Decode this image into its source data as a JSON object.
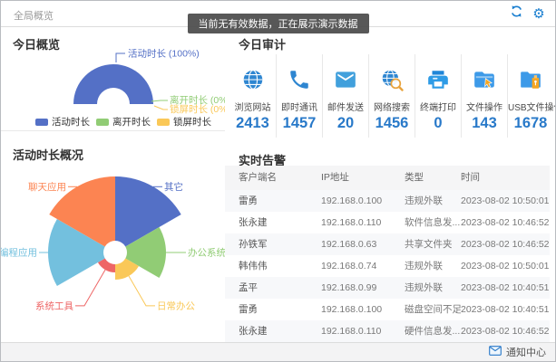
{
  "window": {
    "title": "全局概览"
  },
  "header": {
    "tooltip": "当前无有效数据，正在展示演示数据"
  },
  "colors": {
    "accent_blue": "#2879c9",
    "icon_blue": "#1b7fd0",
    "series_blue": "#5470c6",
    "series_green": "#91cc75",
    "series_yellow": "#fac858",
    "series_red": "#ee6666",
    "series_light_blue": "#73c0de",
    "series_orange": "#fc8452"
  },
  "overview": {
    "title": "今日概览",
    "legend": [
      {
        "label": "活动时长",
        "color": "#5470c6"
      },
      {
        "label": "离开时长",
        "color": "#91cc75"
      },
      {
        "label": "锁屏时长",
        "color": "#fac858"
      }
    ]
  },
  "audit": {
    "title": "今日审计",
    "stats": [
      {
        "icon": "browse-website-icon",
        "label": "浏览网站",
        "value": "2413"
      },
      {
        "icon": "instant-message-icon",
        "label": "即时通讯",
        "value": "1457"
      },
      {
        "icon": "email-send-icon",
        "label": "邮件发送",
        "value": "20"
      },
      {
        "icon": "web-search-icon",
        "label": "网络搜索",
        "value": "1456"
      },
      {
        "icon": "terminal-print-icon",
        "label": "终端打印",
        "value": "0"
      },
      {
        "icon": "file-operation-icon",
        "label": "文件操作",
        "value": "143"
      },
      {
        "icon": "usb-file-operation-icon",
        "label": "USB文件操作",
        "value": "1678"
      }
    ]
  },
  "activity": {
    "title": "活动时长概况"
  },
  "alerts": {
    "title": "实时告警",
    "columns": [
      "客户端名",
      "IP地址",
      "类型",
      "时间"
    ],
    "rows": [
      [
        "雷勇",
        "192.168.0.100",
        "违规外联",
        "2023-08-02 10:50:01"
      ],
      [
        "张永建",
        "192.168.0.110",
        "软件信息发...",
        "2023-08-02 10:46:52"
      ],
      [
        "孙铁军",
        "192.168.0.63",
        "共享文件夹",
        "2023-08-02 10:46:52"
      ],
      [
        "韩伟伟",
        "192.168.0.74",
        "违规外联",
        "2023-08-02 10:50:01"
      ],
      [
        "孟平",
        "192.168.0.99",
        "违规外联",
        "2023-08-02 10:40:51"
      ],
      [
        "雷勇",
        "192.168.0.100",
        "磁盘空间不足",
        "2023-08-02 10:40:51"
      ],
      [
        "张永建",
        "192.168.0.110",
        "硬件信息发...",
        "2023-08-02 10:46:52"
      ]
    ]
  },
  "footer": {
    "notification_label": "通知中心"
  },
  "chart_data": [
    {
      "id": "today-overview-half-donut",
      "type": "pie",
      "variant": "half-donut",
      "title": "今日概览",
      "legend_position": "bottom",
      "series": [
        {
          "name": "活动时长",
          "value_pct": 100,
          "color": "#5470c6",
          "label": "活动时长 (100%)"
        },
        {
          "name": "离开时长",
          "value_pct": 0,
          "color": "#91cc75",
          "label": "离开时长 (0%)"
        },
        {
          "name": "锁屏时长",
          "value_pct": 0,
          "color": "#fac858",
          "label": "锁屏时长 (0%)"
        }
      ]
    },
    {
      "id": "activity-duration-rose",
      "type": "pie",
      "variant": "nightingale-rose",
      "title": "活动时长概况",
      "start_angle_deg": 0,
      "sector_angle_deg": 60,
      "inner_radius_px": 13,
      "series": [
        {
          "name": "其它",
          "color": "#5470c6",
          "radius_px": 84
        },
        {
          "name": "办公系统",
          "color": "#91cc75",
          "radius_px": 56
        },
        {
          "name": "日常办公",
          "color": "#fac858",
          "radius_px": 30
        },
        {
          "name": "系统工具",
          "color": "#ee6666",
          "radius_px": 22
        },
        {
          "name": "编程应用",
          "color": "#73c0de",
          "radius_px": 74
        },
        {
          "name": "聊天应用",
          "color": "#fc8452",
          "radius_px": 84
        }
      ]
    }
  ]
}
